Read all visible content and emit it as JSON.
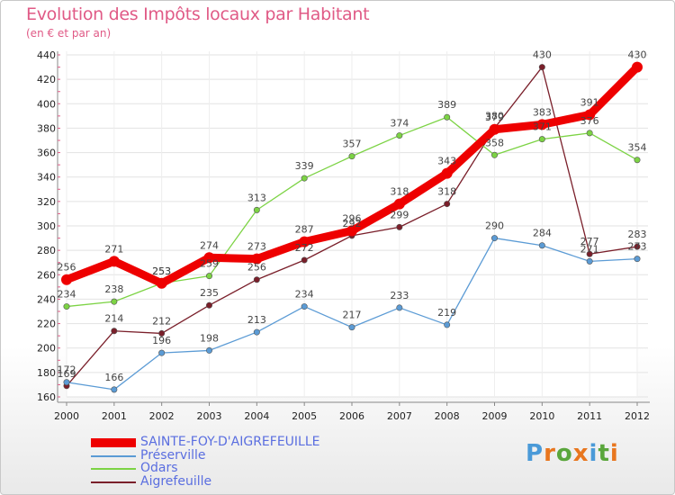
{
  "title": "Evolution des Impôts locaux par Habitant",
  "subtitle": "(en € et par an)",
  "logo_text": "Proxiti",
  "chart_data": {
    "type": "line",
    "x": [
      "2000",
      "2001",
      "2002",
      "2003",
      "2004",
      "2005",
      "2006",
      "2007",
      "2008",
      "2009",
      "2010",
      "2011",
      "2012"
    ],
    "ylim": [
      160,
      440
    ],
    "yticks": [
      160,
      180,
      200,
      220,
      240,
      260,
      280,
      300,
      320,
      340,
      360,
      380,
      400,
      420,
      440
    ],
    "grid": true,
    "legend_position": "bottom-left",
    "series": [
      {
        "name": "SAINTE-FOY-D'AIGREFEUILLE",
        "color": "#ee0000",
        "values": [
          256,
          271,
          253,
          274,
          273,
          287,
          296,
          318,
          343,
          379,
          383,
          391,
          430
        ]
      },
      {
        "name": "Préserville",
        "color": "#5b9bd5",
        "values": [
          172,
          166,
          196,
          198,
          213,
          234,
          217,
          233,
          219,
          290,
          284,
          271,
          273
        ]
      },
      {
        "name": "Odars",
        "color": "#7cd344",
        "values": [
          234,
          238,
          253,
          259,
          313,
          339,
          357,
          374,
          389,
          358,
          371,
          376,
          354
        ]
      },
      {
        "name": "Aigrefeuille",
        "color": "#7a1f2a",
        "values": [
          169,
          214,
          212,
          235,
          256,
          272,
          292,
          299,
          318,
          380,
          430,
          277,
          283
        ]
      }
    ]
  }
}
